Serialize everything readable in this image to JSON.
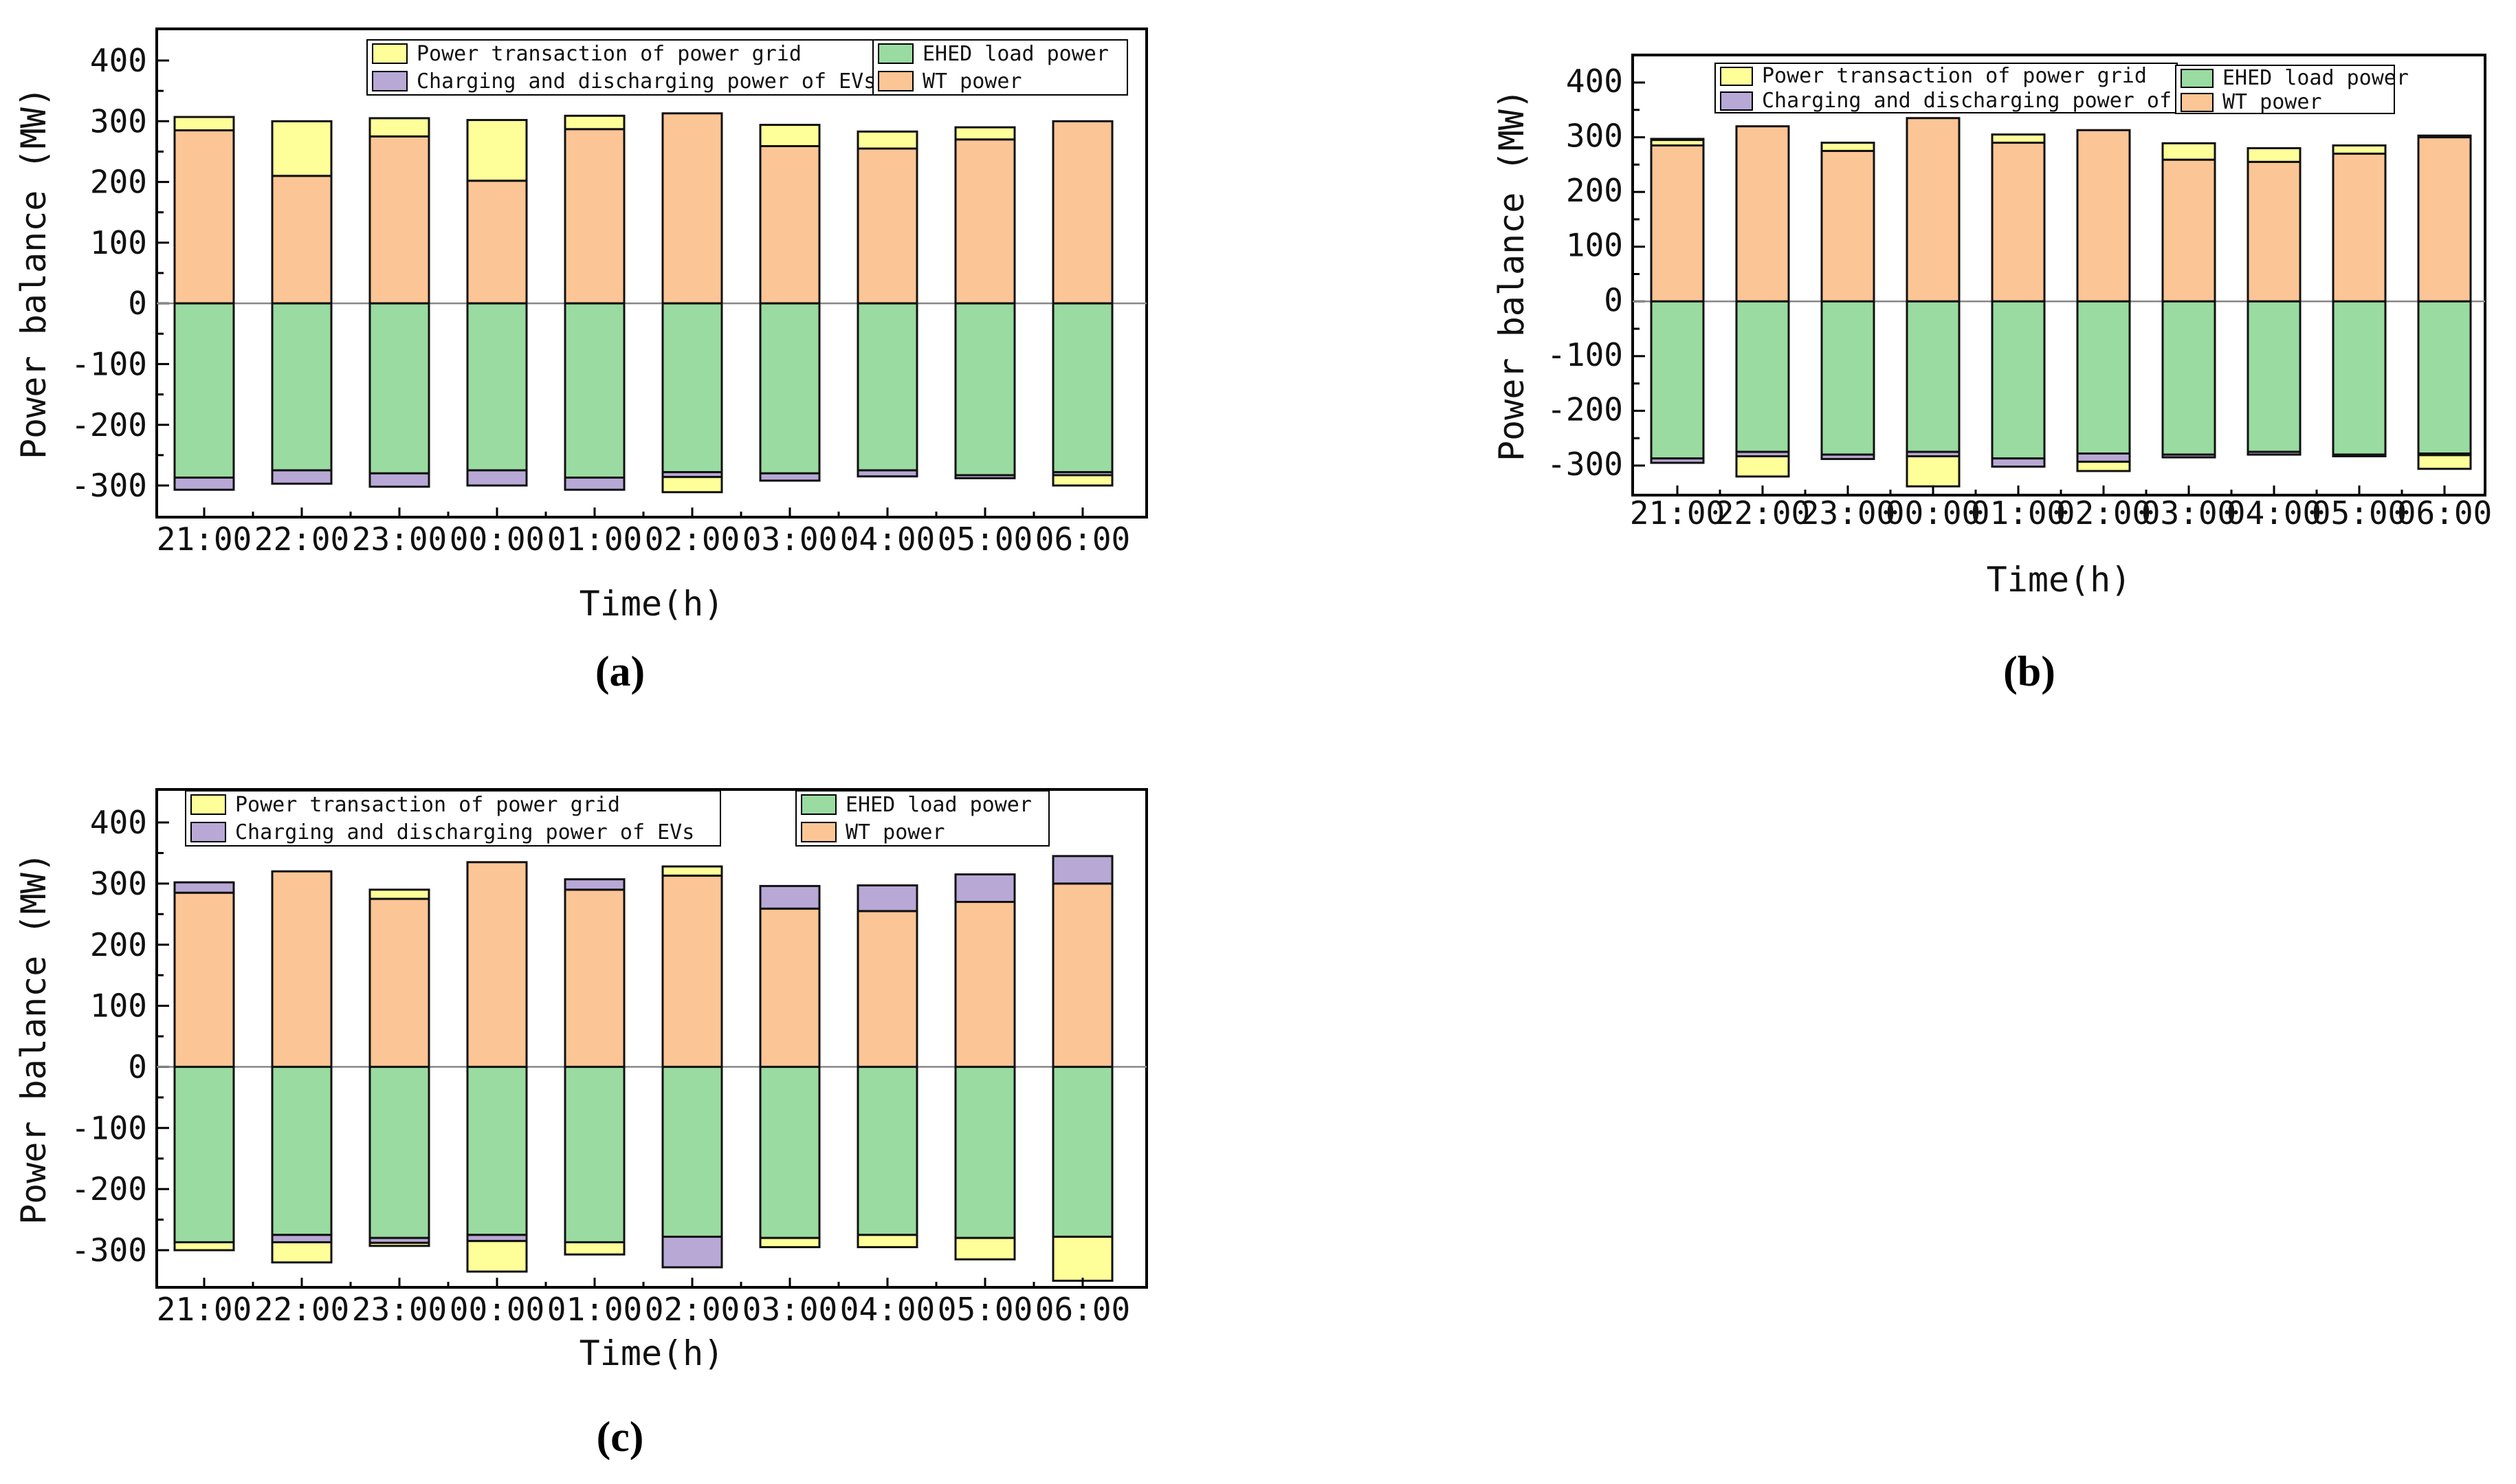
{
  "colors": {
    "grid": "#ffff99",
    "ev": "#b8a8d6",
    "load": "#99dba0",
    "wt": "#fcc595",
    "zero": "#888888"
  },
  "legend": {
    "grid": "Power transaction of power grid",
    "ev": "Charging and discharging power of EVs",
    "load": "EHED load power",
    "wt": "WT power"
  },
  "chart_data": [
    {
      "id": "a",
      "panel_label": "(a)",
      "type": "bar",
      "stacked": true,
      "categories": [
        "21:00",
        "22:00",
        "23:00",
        "00:00",
        "01:00",
        "02:00",
        "03:00",
        "04:00",
        "05:00",
        "06:00"
      ],
      "ylabel": "Power balance (MW)",
      "xlabel": "Time(h)",
      "ylim": [
        -350,
        450
      ],
      "yticks": [
        -300,
        -200,
        -100,
        0,
        100,
        200,
        300,
        400
      ],
      "series": [
        {
          "key": "wt",
          "name": "WT power",
          "values": [
            285,
            210,
            275,
            202,
            287,
            313,
            259,
            255,
            270,
            300
          ]
        },
        {
          "key": "grid",
          "name": "Power transaction of power grid",
          "values": [
            22,
            90,
            30,
            100,
            22,
            0,
            35,
            28,
            20,
            0
          ]
        },
        {
          "key": "load",
          "name": "EHED load power",
          "values": [
            -287,
            -275,
            -280,
            -275,
            -287,
            -278,
            -280,
            -275,
            -283,
            -278
          ]
        },
        {
          "key": "ev",
          "name": "Charging and discharging power of EVs",
          "values": [
            -20,
            -22,
            -22,
            -25,
            -20,
            -8,
            -12,
            -10,
            -5,
            -5
          ]
        },
        {
          "key": "grid",
          "name": "Power transaction of power grid",
          "values": [
            0,
            0,
            0,
            0,
            0,
            -25,
            0,
            0,
            0,
            -17
          ]
        }
      ]
    },
    {
      "id": "b",
      "panel_label": "(b)",
      "type": "bar",
      "stacked": true,
      "categories": [
        "21:00",
        "22:00",
        "23:00",
        "00:00",
        "01:00",
        "02:00",
        "03:00",
        "04:00",
        "05:00",
        "06:00"
      ],
      "ylabel": "Power balance (MW)",
      "xlabel": "Time(h)",
      "ylim": [
        -350,
        450
      ],
      "yticks": [
        -300,
        -200,
        -100,
        0,
        100,
        200,
        300,
        400
      ],
      "series": [
        {
          "key": "wt",
          "name": "WT power",
          "values": [
            285,
            320,
            275,
            335,
            290,
            313,
            259,
            255,
            270,
            300
          ]
        },
        {
          "key": "grid",
          "name": "Power transaction of power grid",
          "values": [
            10,
            0,
            15,
            0,
            15,
            0,
            30,
            25,
            15,
            0
          ]
        },
        {
          "key": "ev",
          "name": "Charging and discharging power of EVs",
          "values": [
            2,
            0,
            0,
            0,
            0,
            0,
            0,
            0,
            0,
            3
          ]
        },
        {
          "key": "load",
          "name": "EHED load power",
          "values": [
            -287,
            -275,
            -280,
            -275,
            -287,
            -278,
            -280,
            -275,
            -280,
            -278
          ]
        },
        {
          "key": "ev",
          "name": "Charging and discharging power of EVs",
          "values": [
            -8,
            -8,
            -8,
            -8,
            -15,
            -15,
            -5,
            -5,
            -3,
            -3
          ]
        },
        {
          "key": "grid",
          "name": "Power transaction of power grid",
          "values": [
            0,
            -37,
            0,
            -55,
            0,
            -17,
            0,
            0,
            0,
            -25
          ]
        }
      ]
    },
    {
      "id": "c",
      "panel_label": "(c)",
      "type": "bar",
      "stacked": true,
      "categories": [
        "21:00",
        "22:00",
        "23:00",
        "00:00",
        "01:00",
        "02:00",
        "03:00",
        "04:00",
        "05:00",
        "06:00"
      ],
      "ylabel": "Power balance (MW)",
      "xlabel": "Time(h)",
      "ylim": [
        -350,
        450
      ],
      "yticks": [
        -300,
        -200,
        -100,
        0,
        100,
        200,
        300,
        400
      ],
      "series": [
        {
          "key": "wt",
          "name": "WT power",
          "values": [
            285,
            320,
            275,
            335,
            290,
            313,
            259,
            255,
            270,
            300
          ]
        },
        {
          "key": "grid",
          "name": "Power transaction of power grid",
          "values": [
            0,
            0,
            15,
            0,
            0,
            15,
            0,
            0,
            0,
            0
          ]
        },
        {
          "key": "ev",
          "name": "Charging and discharging power of EVs",
          "values": [
            17,
            0,
            0,
            0,
            17,
            0,
            37,
            42,
            45,
            45
          ]
        },
        {
          "key": "load",
          "name": "EHED load power",
          "values": [
            -287,
            -275,
            -280,
            -275,
            -287,
            -278,
            -280,
            -275,
            -280,
            -278
          ]
        },
        {
          "key": "ev",
          "name": "Charging and discharging power of EVs",
          "values": [
            0,
            -12,
            -8,
            -10,
            0,
            -50,
            0,
            0,
            0,
            0
          ]
        },
        {
          "key": "grid",
          "name": "Power transaction of power grid",
          "values": [
            -13,
            -33,
            -5,
            -50,
            -20,
            0,
            -15,
            -20,
            -35,
            -72
          ]
        }
      ]
    }
  ]
}
